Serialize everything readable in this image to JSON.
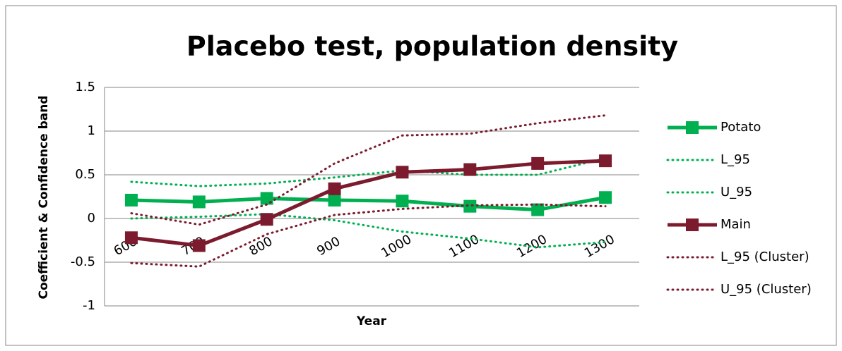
{
  "chart_data": {
    "type": "line",
    "title": "Placebo test, population density",
    "x_label": "Year",
    "y_label": "Coefficient & Confidence band",
    "categories": [
      "600",
      "700",
      "800",
      "900",
      "1000",
      "1100",
      "1200",
      "1300"
    ],
    "ylim": [
      -1,
      1.5
    ],
    "yticks": [
      -1,
      -0.5,
      0,
      0.5,
      1,
      1.5
    ],
    "grid": true,
    "series": [
      {
        "name": "Potato",
        "color": "#00b050",
        "style": "solid",
        "marker": "square",
        "values": [
          0.21,
          0.19,
          0.23,
          0.21,
          0.2,
          0.14,
          0.1,
          0.24
        ]
      },
      {
        "name": "L_95",
        "color": "#00b050",
        "style": "dotted",
        "values": [
          0.0,
          0.02,
          0.05,
          -0.02,
          -0.15,
          -0.23,
          -0.33,
          -0.27
        ]
      },
      {
        "name": "U_95",
        "color": "#00b050",
        "style": "dotted",
        "values": [
          0.42,
          0.37,
          0.4,
          0.47,
          0.55,
          0.5,
          0.5,
          0.69
        ]
      },
      {
        "name": "Main",
        "color": "#7b1b2d",
        "style": "solid",
        "marker": "square",
        "values": [
          -0.22,
          -0.31,
          -0.01,
          0.34,
          0.53,
          0.56,
          0.63,
          0.66
        ]
      },
      {
        "name": "L_95 (Cluster)",
        "color": "#7b1b2d",
        "style": "dotted",
        "values": [
          -0.51,
          -0.55,
          -0.18,
          0.04,
          0.11,
          0.15,
          0.16,
          0.14
        ]
      },
      {
        "name": "U_95 (Cluster)",
        "color": "#7b1b2d",
        "style": "dotted",
        "values": [
          0.06,
          -0.07,
          0.16,
          0.63,
          0.95,
          0.97,
          1.09,
          1.18
        ]
      }
    ]
  }
}
